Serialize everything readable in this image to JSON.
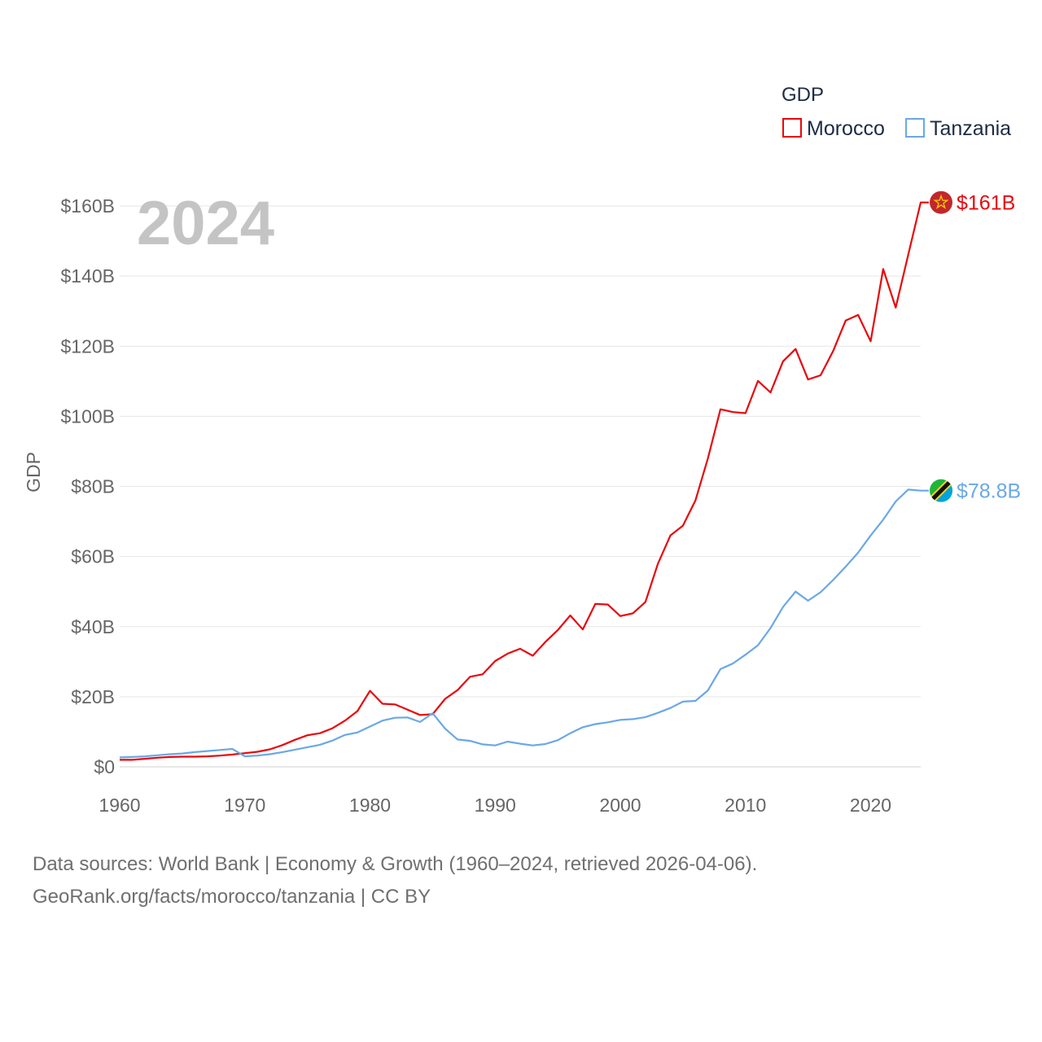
{
  "chart_data": {
    "type": "line",
    "year_label": "2024",
    "ylabel": "GDP",
    "ylim": [
      0,
      160000000000
    ],
    "xlim": [
      1960,
      2024
    ],
    "y_ticks": [
      0,
      20000000000,
      40000000000,
      60000000000,
      80000000000,
      100000000000,
      120000000000,
      140000000000,
      160000000000
    ],
    "y_tick_labels": [
      "$0",
      "$20B",
      "$40B",
      "$60B",
      "$80B",
      "$100B",
      "$120B",
      "$140B",
      "$160B"
    ],
    "x_ticks": [
      1960,
      1970,
      1980,
      1990,
      2000,
      2010,
      2020
    ],
    "x_tick_labels": [
      "1960",
      "1970",
      "1980",
      "1990",
      "2000",
      "2010",
      "2020"
    ],
    "legend": {
      "title": "GDP",
      "position": "top-right"
    },
    "x": [
      1960,
      1961,
      1962,
      1963,
      1964,
      1965,
      1966,
      1967,
      1968,
      1969,
      1970,
      1971,
      1972,
      1973,
      1974,
      1975,
      1976,
      1977,
      1978,
      1979,
      1980,
      1981,
      1982,
      1983,
      1984,
      1985,
      1986,
      1987,
      1988,
      1989,
      1990,
      1991,
      1992,
      1993,
      1994,
      1995,
      1996,
      1997,
      1998,
      1999,
      2000,
      2001,
      2002,
      2003,
      2004,
      2005,
      2006,
      2007,
      2008,
      2009,
      2010,
      2011,
      2012,
      2013,
      2014,
      2015,
      2016,
      2017,
      2018,
      2019,
      2020,
      2021,
      2022,
      2023,
      2024
    ],
    "series": [
      {
        "name": "Morocco",
        "color": "#e8070c",
        "end_label": "$161B",
        "flag": "morocco-flag",
        "values": [
          2000000000.0,
          2000000000.0,
          2300000000.0,
          2600000000.0,
          2800000000.0,
          2900000000.0,
          2900000000.0,
          3000000000.0,
          3200000000.0,
          3500000000.0,
          3900000000.0,
          4300000000.0,
          5000000000.0,
          6200000000.0,
          7700000000.0,
          9000000000.0,
          9600000000.0,
          11000000000.0,
          13200000000.0,
          15900000000.0,
          21700000000.0,
          18000000000.0,
          17800000000.0,
          16300000000.0,
          14800000000.0,
          15000000000.0,
          19400000000.0,
          21900000000.0,
          25700000000.0,
          26400000000.0,
          30200000000.0,
          32300000000.0,
          33700000000.0,
          31700000000.0,
          35600000000.0,
          39000000000.0,
          43200000000.0,
          39200000000.0,
          46500000000.0,
          46300000000.0,
          43000000000.0,
          43800000000.0,
          47000000000.0,
          57900000000.0,
          66000000000.0,
          68800000000.0,
          76000000000.0,
          88000000000.0,
          102000000000.0,
          101200000000.0,
          100900000000.0,
          110100000000.0,
          106800000000.0,
          115700000000.0,
          119200000000.0,
          110500000000.0,
          111700000000.0,
          118600000000.0,
          127300000000.0,
          128900000000.0,
          121400000000.0,
          142000000000.0,
          131000000000.0,
          146000000000.0,
          161000000000.0
        ]
      },
      {
        "name": "Tanzania",
        "color": "#6aa8e6",
        "end_label": "$78.8B",
        "flag": "tanzania-flag",
        "values": [
          2700000000.0,
          2800000000.0,
          3000000000.0,
          3300000000.0,
          3600000000.0,
          3800000000.0,
          4200000000.0,
          4500000000.0,
          4800000000.0,
          5100000000.0,
          3000000000.0,
          3200000000.0,
          3600000000.0,
          4200000000.0,
          4900000000.0,
          5600000000.0,
          6300000000.0,
          7500000000.0,
          9100000000.0,
          9800000000.0,
          11500000000.0,
          13200000000.0,
          14000000000.0,
          14100000000.0,
          12800000000.0,
          15300000000.0,
          10900000000.0,
          7800000000.0,
          7400000000.0,
          6400000000.0,
          6100000000.0,
          7200000000.0,
          6600000000.0,
          6100000000.0,
          6500000000.0,
          7600000000.0,
          9600000000.0,
          11300000000.0,
          12200000000.0,
          12700000000.0,
          13400000000.0,
          13600000000.0,
          14200000000.0,
          15400000000.0,
          16800000000.0,
          18600000000.0,
          18800000000.0,
          21800000000.0,
          27900000000.0,
          29500000000.0,
          32000000000.0,
          34700000000.0,
          39600000000.0,
          45600000000.0,
          50000000000.0,
          47400000000.0,
          49800000000.0,
          53300000000.0,
          57100000000.0,
          61100000000.0,
          66000000000.0,
          70500000000.0,
          75700000000.0,
          79100000000.0,
          78800000000.0
        ]
      }
    ]
  },
  "footer": {
    "line1": "Data sources: World Bank | Economy & Growth (1960–2024, retrieved 2026-04-06).",
    "line2": "GeoRank.org/facts/morocco/tanzania | CC BY"
  }
}
